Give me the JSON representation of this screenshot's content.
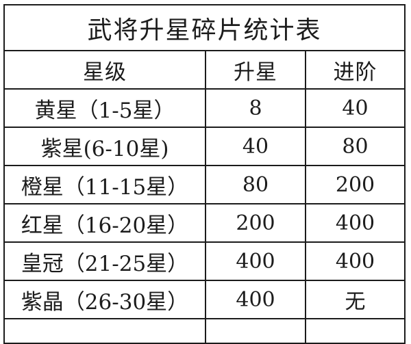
{
  "table": {
    "title": "武将升星碎片统计表",
    "columns": {
      "level": "星级",
      "upstar": "升星",
      "advance": "进阶"
    },
    "rows": [
      {
        "level": "黄星（1-5星）",
        "upstar": "8",
        "advance": "40"
      },
      {
        "level": "紫星(6-10星)",
        "upstar": "40",
        "advance": "80"
      },
      {
        "level": "橙星（11-15星）",
        "upstar": "80",
        "advance": "200"
      },
      {
        "level": "红星（16-20星）",
        "upstar": "200",
        "advance": "400"
      },
      {
        "level": "皇冠（21-25星）",
        "upstar": "400",
        "advance": "400"
      },
      {
        "level": "紫晶（26-30星）",
        "upstar": "400",
        "advance": "无"
      }
    ],
    "colors": {
      "border": "#1b1b1b",
      "text": "#1c1c1c",
      "background": "#ffffff"
    }
  }
}
